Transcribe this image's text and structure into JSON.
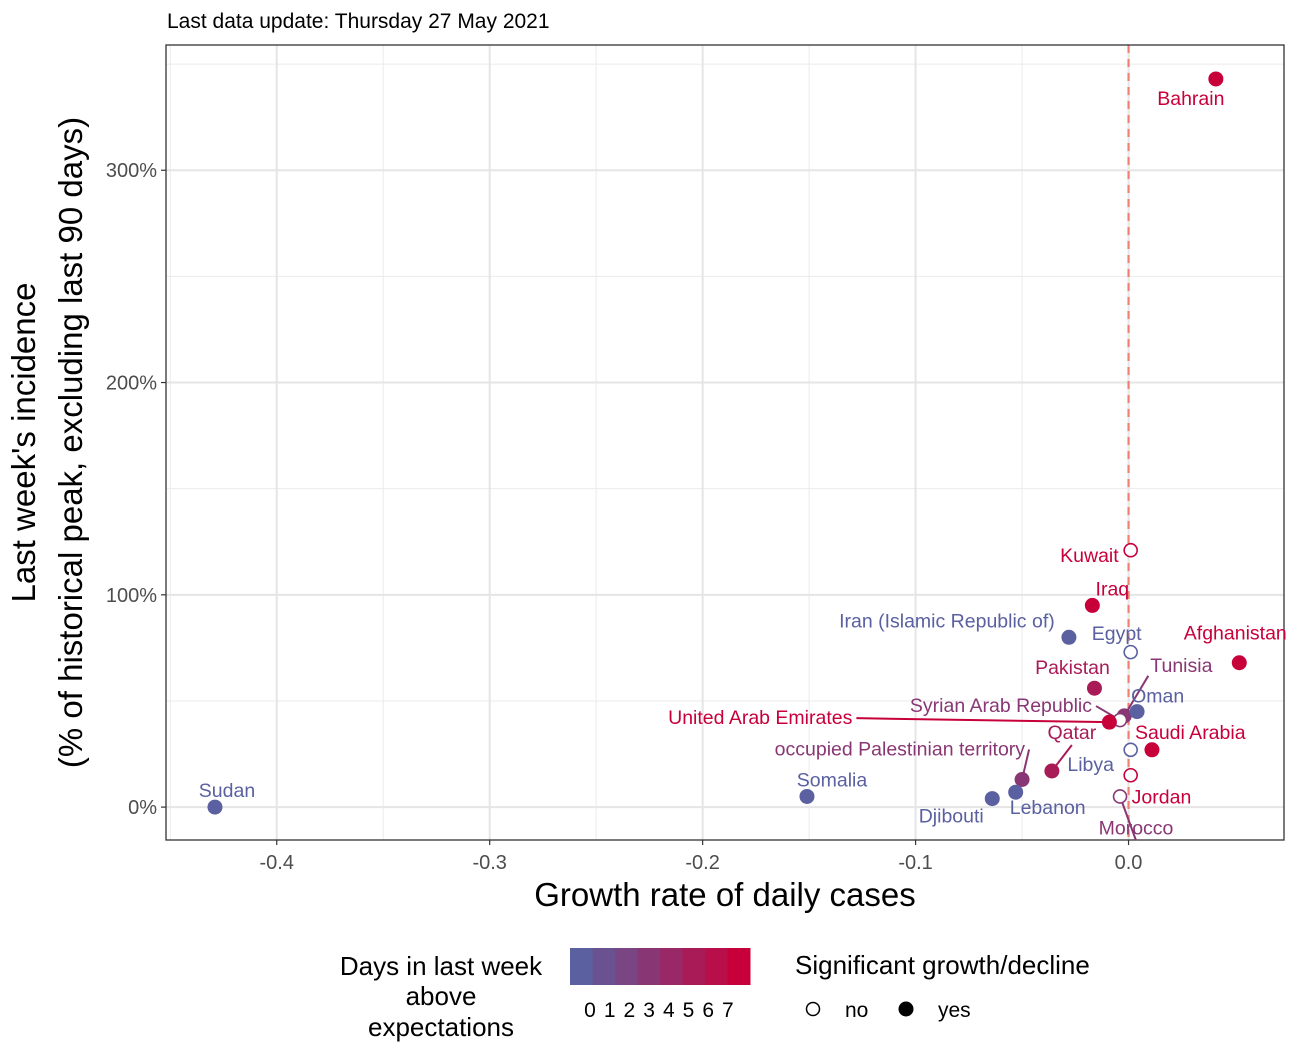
{
  "subtitle": "Last data update: Thursday 27 May 2021",
  "chart_data": {
    "type": "scatter",
    "xlabel": "Growth rate of daily cases",
    "ylabel_lines": [
      "Last week's incidence",
      "(% of historical peak, excluding last 90 days)"
    ],
    "xlim": [
      -0.452,
      0.073
    ],
    "ylim": [
      -15.5,
      359
    ],
    "x_ticks": [
      {
        "value": -0.4,
        "label": "-0.4"
      },
      {
        "value": -0.3,
        "label": "-0.3"
      },
      {
        "value": -0.2,
        "label": "-0.2"
      },
      {
        "value": -0.1,
        "label": "-0.1"
      },
      {
        "value": 0.0,
        "label": "0.0"
      }
    ],
    "y_ticks": [
      {
        "value": 0,
        "label": "0%"
      },
      {
        "value": 100,
        "label": "100%"
      },
      {
        "value": 200,
        "label": "200%"
      },
      {
        "value": 300,
        "label": "300%"
      }
    ],
    "reference_line": {
      "x": 0,
      "style": "dashed",
      "color": "#f08070"
    },
    "grid": true,
    "points": [
      {
        "name": "Bahrain",
        "x": 0.041,
        "y": 343,
        "days": 7,
        "significant": true
      },
      {
        "name": "Kuwait",
        "x": 0.001,
        "y": 121,
        "days": 7,
        "significant": false
      },
      {
        "name": "Iraq",
        "x": -0.017,
        "y": 95,
        "days": 7,
        "significant": true
      },
      {
        "name": "Iran (Islamic Republic of)",
        "x": -0.028,
        "y": 80,
        "days": 0,
        "significant": true
      },
      {
        "name": "Egypt",
        "x": 0.001,
        "y": 73,
        "days": 0,
        "significant": false
      },
      {
        "name": "Afghanistan",
        "x": 0.052,
        "y": 68,
        "days": 7,
        "significant": true
      },
      {
        "name": "Tunisia",
        "x": -0.002,
        "y": 43,
        "days": 3,
        "significant": true
      },
      {
        "name": "Pakistan",
        "x": -0.016,
        "y": 56,
        "days": 5,
        "significant": true
      },
      {
        "name": "Oman",
        "x": 0.004,
        "y": 45,
        "days": 0,
        "significant": true
      },
      {
        "name": "Syrian Arab Republic",
        "x": -0.004,
        "y": 41,
        "days": 3,
        "significant": false
      },
      {
        "name": "United Arab Emirates",
        "x": -0.009,
        "y": 40,
        "days": 7,
        "significant": true
      },
      {
        "name": "Saudi Arabia",
        "x": 0.011,
        "y": 27,
        "days": 7,
        "significant": true
      },
      {
        "name": "Qatar",
        "x": -0.036,
        "y": 17,
        "days": 5,
        "significant": true
      },
      {
        "name": "Libya",
        "x": 0.001,
        "y": 27,
        "days": 0,
        "significant": false
      },
      {
        "name": "occupied Palestinian territory",
        "x": -0.05,
        "y": 13,
        "days": 3,
        "significant": true
      },
      {
        "name": "Jordan",
        "x": 0.001,
        "y": 15,
        "days": 7,
        "significant": false
      },
      {
        "name": "Morocco",
        "x": -0.004,
        "y": 5,
        "days": 3,
        "significant": false
      },
      {
        "name": "Sudan",
        "x": -0.429,
        "y": 0,
        "days": 0,
        "significant": true
      },
      {
        "name": "Somalia",
        "x": -0.151,
        "y": 5,
        "days": 0,
        "significant": true
      },
      {
        "name": "Lebanon",
        "x": -0.053,
        "y": 7,
        "days": 0,
        "significant": true
      },
      {
        "name": "Djibouti",
        "x": -0.064,
        "y": 4,
        "days": 0,
        "significant": true
      }
    ],
    "color_scale": {
      "low": "#5a60a0",
      "high": "#c8003a",
      "min": 0,
      "max": 7
    },
    "legend": {
      "color_title_lines": [
        "Days in last week",
        "above",
        "expectations"
      ],
      "color_labels": [
        "0",
        "1",
        "2",
        "3",
        "4",
        "5",
        "6",
        "7"
      ],
      "shape_title": "Significant growth/decline",
      "shape_labels": [
        "no",
        "yes"
      ],
      "placement": "bottom"
    }
  }
}
